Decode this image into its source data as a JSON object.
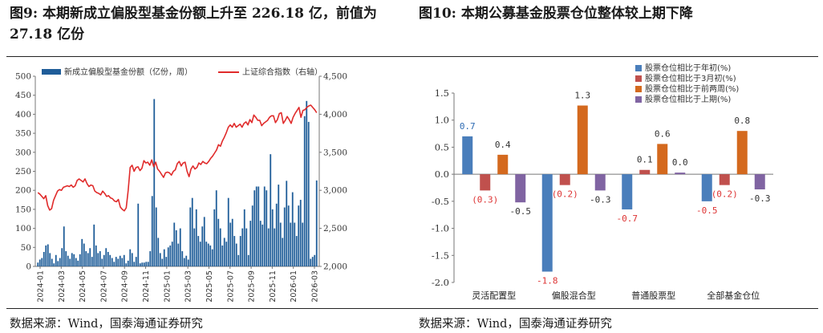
{
  "left_title": "图9:  本期新成立偏股型基金份额上升至 226.18 亿，前值为 27.18 亿份",
  "right_title": "图10:  本期公募基金股票仓位整体较上期下降",
  "left_source": "数据来源：Wind，国泰海通证券研究",
  "right_source": "数据来源：Wind，国泰海通证券研究",
  "chart_data": [
    {
      "type": "bar",
      "legend_position": "top",
      "ylim": [
        0,
        500
      ],
      "y2lim": [
        2000,
        4500
      ],
      "yticks": [
        "0",
        "50",
        "100",
        "150",
        "200",
        "250",
        "300",
        "350",
        "400",
        "450",
        "500"
      ],
      "y2ticks": [
        "2,000",
        "2,500",
        "3,000",
        "3,500",
        "4,000",
        "4,500"
      ],
      "x_tick_labels": [
        "2024-01",
        "2024-03",
        "2024-05",
        "2024-07",
        "2024-09",
        "2024-11",
        "2025-01",
        "2025-03",
        "2025-05",
        "2025-07",
        "2025-09",
        "2025-11",
        "2026-01",
        "2026-03"
      ],
      "series": [
        {
          "name": "新成立偏股型基金份额（亿份，周）",
          "axis": "left",
          "color": "#1f5d99",
          "values": [
            10,
            18,
            22,
            38,
            55,
            58,
            35,
            20,
            8,
            30,
            14,
            22,
            48,
            105,
            40,
            28,
            20,
            35,
            32,
            22,
            15,
            32,
            72,
            60,
            40,
            35,
            48,
            25,
            110,
            55,
            35,
            40,
            20,
            30,
            48,
            38,
            30,
            22,
            12,
            25,
            20,
            28,
            22,
            30,
            8,
            15,
            45,
            35,
            12,
            25,
            165,
            8,
            10,
            10,
            12,
            12,
            40,
            185,
            440,
            155,
            75,
            35,
            20,
            45,
            25,
            50,
            55,
            65,
            115,
            95,
            60,
            100,
            40,
            22,
            28,
            18,
            155,
            180,
            100,
            150,
            80,
            65,
            105,
            130,
            65,
            60,
            55,
            45,
            150,
            200,
            125,
            100,
            55,
            75,
            65,
            180,
            115,
            125,
            80,
            60,
            30,
            80,
            100,
            150,
            100,
            30,
            120,
            160,
            200,
            210,
            210,
            120,
            110,
            210,
            200,
            100,
            295,
            150,
            100,
            165,
            215,
            115,
            75,
            155,
            225,
            160,
            115,
            195,
            115,
            80,
            160,
            175,
            115,
            395,
            435,
            380,
            20,
            25,
            30,
            226
          ]
        },
        {
          "name": "上证综合指数（右轴）",
          "axis": "right",
          "color": "#e02b2b",
          "values": [
            2970,
            2950,
            2920,
            2890,
            2930,
            2800,
            2740,
            2760,
            2870,
            2930,
            2990,
            3010,
            3000,
            3040,
            3050,
            3060,
            3050,
            3070,
            3040,
            3060,
            3130,
            3150,
            3130,
            3110,
            3150,
            3090,
            3050,
            3070,
            3060,
            2990,
            2970,
            2960,
            2940,
            2990,
            2960,
            2920,
            2930,
            2900,
            2890,
            2860,
            2850,
            2880,
            2780,
            2750,
            2730,
            2770,
            3000,
            3300,
            3330,
            3250,
            3300,
            3310,
            3260,
            3290,
            3390,
            3360,
            3370,
            3330,
            3400,
            3310,
            3370,
            3280,
            3250,
            3210,
            3170,
            3230,
            3240,
            3230,
            3200,
            3250,
            3270,
            3350,
            3380,
            3320,
            3360,
            3370,
            3250,
            3180,
            3280,
            3320,
            3280,
            3300,
            3360,
            3340,
            3380,
            3360,
            3350,
            3380,
            3420,
            3450,
            3490,
            3530,
            3600,
            3580,
            3650,
            3700,
            3760,
            3830,
            3860,
            3830,
            3880,
            3830,
            3850,
            3870,
            3830,
            3880,
            3900,
            3860,
            3930,
            3890,
            3990,
            3960,
            3920,
            3920,
            3850,
            3880,
            3900,
            3920,
            3960,
            3980,
            3980,
            3890,
            3930,
            4010,
            4020,
            3880,
            3920,
            3970,
            3930,
            3880,
            3960,
            4010,
            4050,
            4090,
            3960,
            4050,
            4060,
            4090,
            4110,
            4120,
            4090,
            4060,
            4020
          ]
        }
      ]
    },
    {
      "type": "bar",
      "legend_position": "top-right",
      "ylim": [
        -2.0,
        1.5
      ],
      "yticks": [
        "-2.0",
        "-1.5",
        "-1.0",
        "-0.5",
        "0.0",
        "0.5",
        "1.0",
        "1.5"
      ],
      "categories": [
        "灵活配置型",
        "偏股混合型",
        "普通股票型",
        "全部基金仓位"
      ],
      "series": [
        {
          "name": "股票仓位相比于年初(%)",
          "color": "#4a7ebb",
          "values": [
            0.7,
            -1.8,
            -0.65,
            -0.5
          ],
          "labels": [
            "0.7",
            "-1.8",
            "-0.7",
            "-0.5"
          ],
          "label_colors": [
            "#2e6bb3",
            "#d33",
            "#d33",
            "#d33"
          ]
        },
        {
          "name": "股票仓位相比于3月初(%)",
          "color": "#c0504d",
          "values": [
            -0.3,
            -0.2,
            0.08,
            -0.2
          ],
          "labels": [
            "(0.3)",
            "(0.2)",
            "0.1",
            "(0.2)"
          ],
          "label_colors": [
            "#d33",
            "#d33",
            "#333",
            "#d33"
          ]
        },
        {
          "name": "股票仓位相比于前两周(%)",
          "color": "#d4691e",
          "values": [
            0.36,
            1.27,
            0.56,
            0.8
          ],
          "labels": [
            "0.4",
            "1.3",
            "0.6",
            "0.8"
          ],
          "label_colors": [
            "#333",
            "#333",
            "#333",
            "#333"
          ]
        },
        {
          "name": "股票仓位相比于上期(%)",
          "color": "#8064a2",
          "values": [
            -0.52,
            -0.3,
            0.03,
            -0.28
          ],
          "labels": [
            "-0.5",
            "-0.3",
            "0.0",
            "-0.3"
          ],
          "label_colors": [
            "#333",
            "#333",
            "#333",
            "#333"
          ]
        }
      ]
    }
  ]
}
